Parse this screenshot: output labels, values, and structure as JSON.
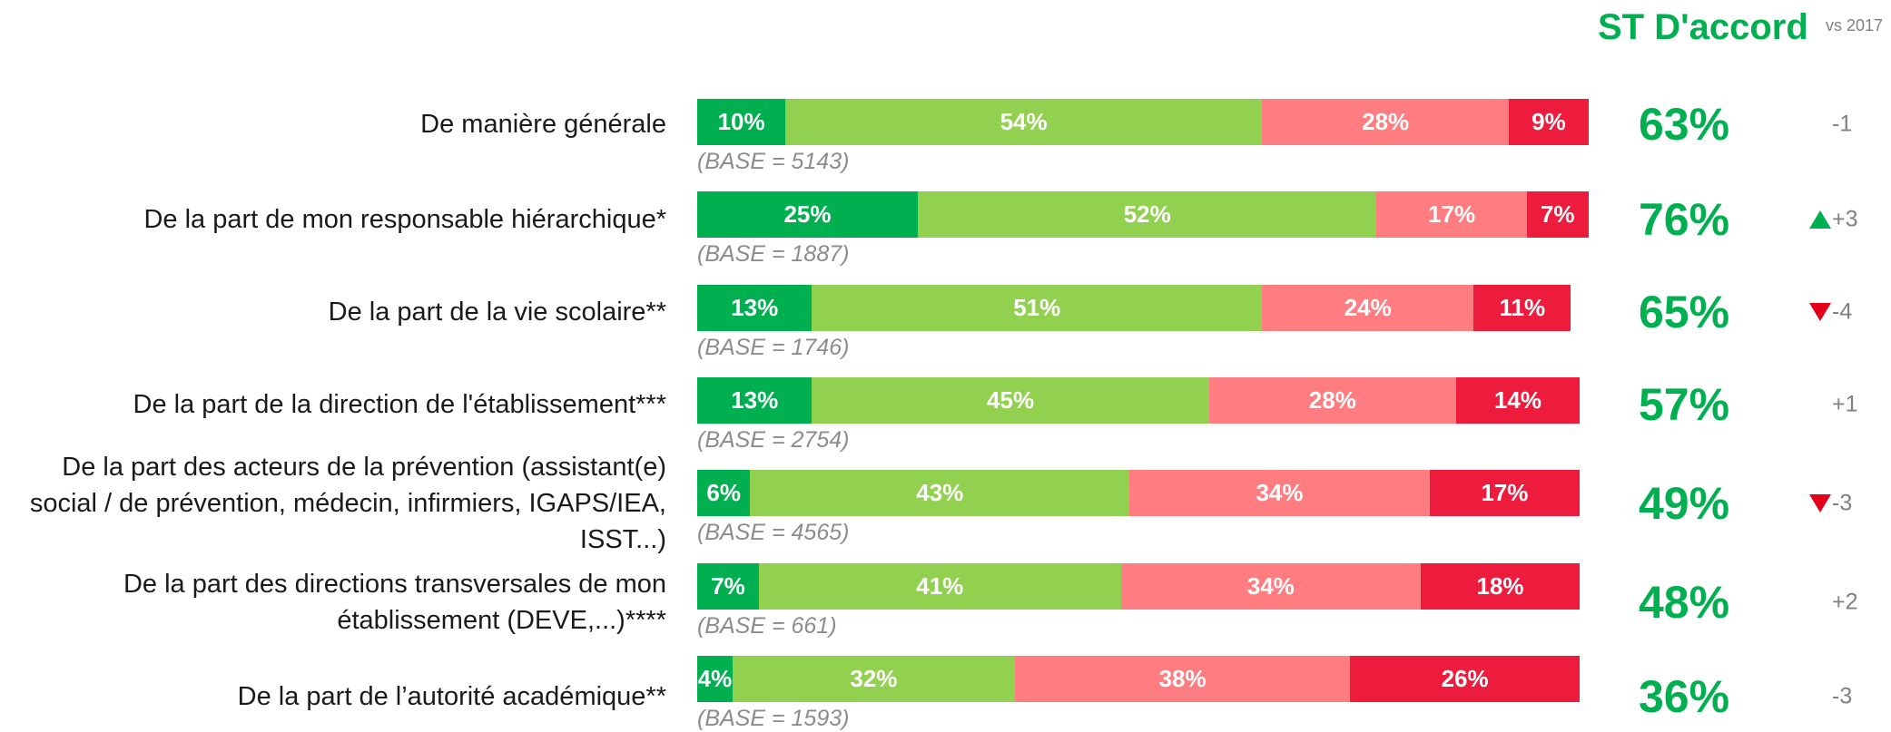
{
  "chart_data": {
    "type": "bar",
    "orientation": "horizontal",
    "stacked": true,
    "header": "ST D'accord",
    "subheader": "vs 2017",
    "categories": [
      "De manière générale",
      "De la part de mon responsable hiérarchique*",
      "De la part de la vie scolaire**",
      "De la part de la direction de l'établissement***",
      "De la part des acteurs de la prévention (assistant(e) social / de prévention, médecin, infirmiers, IGAPS/IEA, ISST...)",
      "De la part des directions transversales de mon établissement (DEVE,...)****",
      "De la part de l’autorité académique**"
    ],
    "bases": [
      "(BASE = 5143)",
      "(BASE = 1887)",
      "(BASE = 1746)",
      "(BASE = 2754)",
      "(BASE = 4565)",
      "(BASE = 661)",
      "(BASE = 1593)"
    ],
    "xlim": [
      0,
      100
    ],
    "series": [
      {
        "color": "#00b050",
        "values": [
          10,
          25,
          13,
          13,
          6,
          7,
          4
        ],
        "value_labels": [
          "10%",
          "25%",
          "13%",
          "13%",
          "6%",
          "7%",
          "4%"
        ]
      },
      {
        "color": "#92d050",
        "values": [
          54,
          52,
          51,
          45,
          43,
          41,
          32
        ],
        "value_labels": [
          "54%",
          "52%",
          "51%",
          "45%",
          "43%",
          "41%",
          "32%"
        ]
      },
      {
        "color": "#ff7c80",
        "values": [
          28,
          17,
          24,
          28,
          34,
          34,
          38
        ],
        "value_labels": [
          "28%",
          "17%",
          "24%",
          "28%",
          "34%",
          "34%",
          "38%"
        ]
      },
      {
        "color": "#ed1c3c",
        "values": [
          9,
          7,
          11,
          14,
          17,
          18,
          26
        ],
        "value_labels": [
          "9%",
          "7%",
          "11%",
          "14%",
          "17%",
          "18%",
          "26%"
        ]
      }
    ],
    "totals": {
      "color": "#00b050",
      "values": [
        63,
        76,
        65,
        57,
        49,
        48,
        36
      ],
      "value_labels": [
        "63%",
        "76%",
        "65%",
        "57%",
        "49%",
        "48%",
        "36%"
      ]
    },
    "change": {
      "values": [
        -1,
        3,
        -4,
        1,
        -3,
        2,
        -3
      ],
      "value_labels": [
        "-1",
        "+3",
        "-4",
        "+1",
        "-3",
        "+2",
        "-3"
      ],
      "arrows": [
        null,
        "up",
        "down",
        null,
        "down",
        null,
        null
      ]
    }
  }
}
